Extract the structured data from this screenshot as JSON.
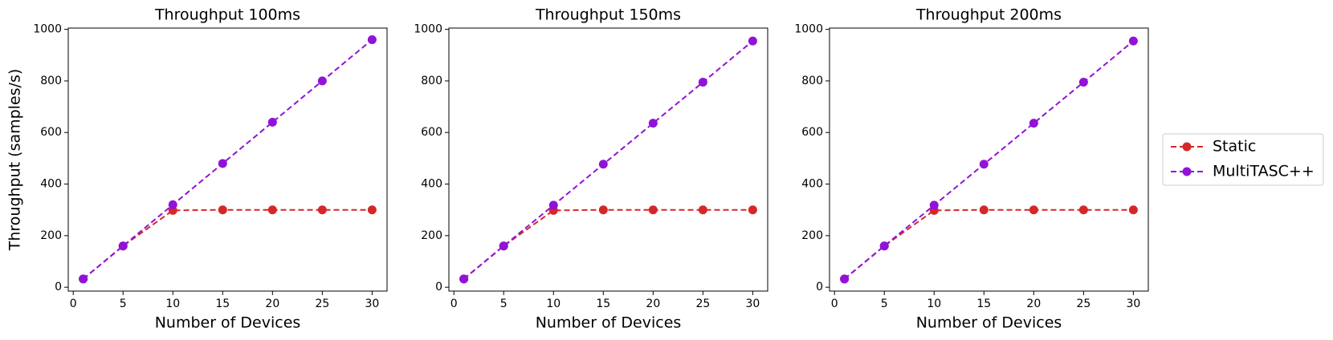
{
  "chart_data": [
    {
      "type": "line",
      "title": "Throughput 100ms",
      "x_label": "Number of Devices",
      "y_label": "Throughput (samples/s)",
      "x": [
        1,
        5,
        10,
        15,
        20,
        25,
        30
      ],
      "series": [
        {
          "name": "Static",
          "color": "#d62728",
          "values": [
            32,
            160,
            298,
            300,
            300,
            300,
            300
          ]
        },
        {
          "name": "MultiTASC++",
          "color": "#9112d8",
          "values": [
            32,
            160,
            320,
            480,
            640,
            800,
            960
          ]
        }
      ],
      "xlim": [
        -0.5,
        31.5
      ],
      "xticks": [
        0,
        5,
        10,
        15,
        20,
        25,
        30
      ],
      "ylim": [
        -15,
        1005
      ],
      "yticks": [
        0,
        200,
        400,
        600,
        800,
        1000
      ],
      "legend": "right"
    },
    {
      "type": "line",
      "title": "Throughput 150ms",
      "x_label": "Number of Devices",
      "x": [
        1,
        5,
        10,
        15,
        20,
        25,
        30
      ],
      "series": [
        {
          "name": "Static",
          "color": "#d62728",
          "values": [
            32,
            160,
            298,
            300,
            300,
            300,
            300
          ]
        },
        {
          "name": "MultiTASC++",
          "color": "#9112d8",
          "values": [
            32,
            160,
            318,
            477,
            636,
            795,
            955
          ]
        }
      ],
      "xlim": [
        -0.5,
        31.5
      ],
      "xticks": [
        0,
        5,
        10,
        15,
        20,
        25,
        30
      ],
      "ylim": [
        -15,
        1005
      ],
      "yticks": [
        0,
        200,
        400,
        600,
        800,
        1000
      ]
    },
    {
      "type": "line",
      "title": "Throughput 200ms",
      "x_label": "Number of Devices",
      "x": [
        1,
        5,
        10,
        15,
        20,
        25,
        30
      ],
      "series": [
        {
          "name": "Static",
          "color": "#d62728",
          "values": [
            32,
            160,
            298,
            300,
            300,
            300,
            300
          ]
        },
        {
          "name": "MultiTASC++",
          "color": "#9112d8",
          "values": [
            32,
            160,
            318,
            477,
            636,
            795,
            955
          ]
        }
      ],
      "xlim": [
        -0.5,
        31.5
      ],
      "xticks": [
        0,
        5,
        10,
        15,
        20,
        25,
        30
      ],
      "ylim": [
        -15,
        1005
      ],
      "yticks": [
        0,
        200,
        400,
        600,
        800,
        1000
      ]
    }
  ]
}
